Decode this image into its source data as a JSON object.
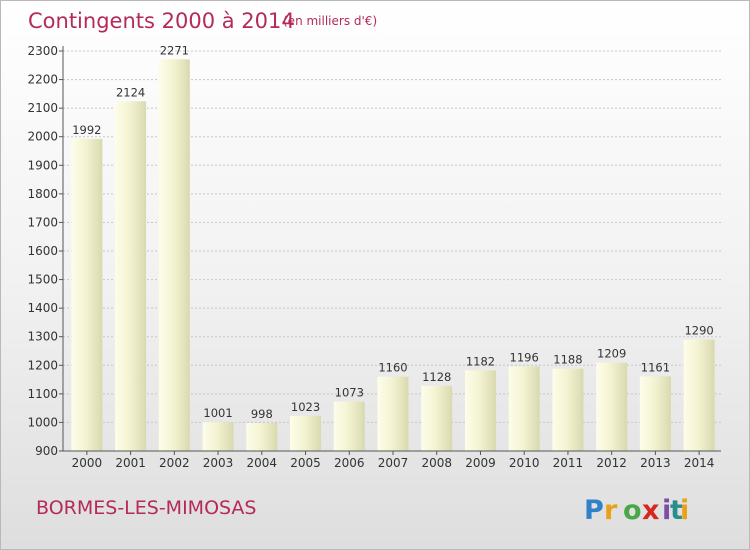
{
  "title": "Contingents 2000 à 2014",
  "subtitle": "(en milliers d'€)",
  "commune": "BORMES-LES-MIMOSAS",
  "logo": {
    "text": "Proxiti",
    "letters": [
      "P",
      "r",
      "o",
      "x",
      "i",
      "t",
      "i"
    ],
    "colors": [
      "#2f82c8",
      "#e8a21a",
      "#4aa647",
      "#d6281d",
      "#7c4ea6",
      "#2a8d8c",
      "#e8a21a"
    ]
  },
  "colors": {
    "title": "#b52a57",
    "bar_light": "#fbfbe3",
    "bar_dark": "#dcdcb2"
  },
  "chart_data": {
    "type": "bar",
    "categories": [
      "2000",
      "2001",
      "2002",
      "2003",
      "2004",
      "2005",
      "2006",
      "2007",
      "2008",
      "2009",
      "2010",
      "2011",
      "2012",
      "2013",
      "2014"
    ],
    "values": [
      1992,
      2124,
      2271,
      1001,
      998,
      1023,
      1073,
      1160,
      1128,
      1182,
      1196,
      1188,
      1209,
      1161,
      1290
    ],
    "ylim": [
      900,
      2300
    ],
    "yticks": [
      900,
      1000,
      1100,
      1200,
      1300,
      1400,
      1500,
      1600,
      1700,
      1800,
      1900,
      2000,
      2100,
      2200,
      2300
    ],
    "grid": true,
    "legend": "none"
  }
}
